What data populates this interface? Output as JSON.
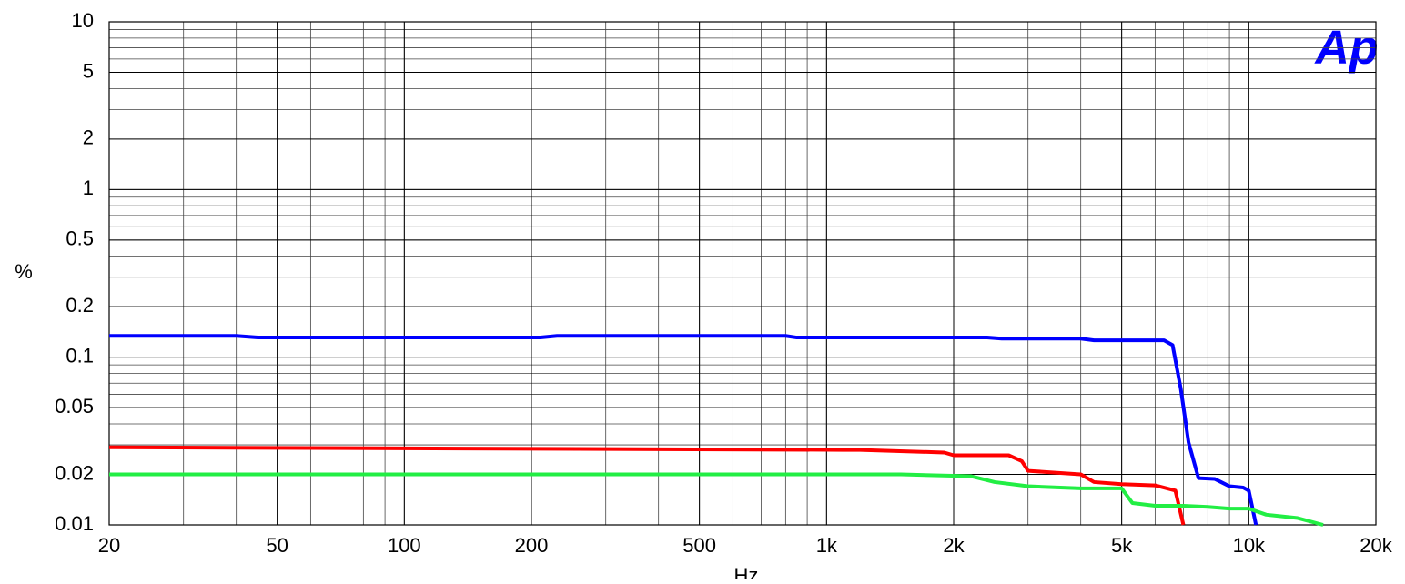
{
  "chart_data": {
    "type": "line",
    "logo": "Ap",
    "ylabel": "%",
    "xlabel": "Hz",
    "xscale": "log",
    "yscale": "log",
    "grid": true,
    "minor_grid": true,
    "xlim": [
      20,
      20000
    ],
    "ylim": [
      0.01,
      10
    ],
    "xticks": [
      20,
      50,
      100,
      200,
      500,
      {
        "value": 1000,
        "label": "1k"
      },
      {
        "value": 2000,
        "label": "2k"
      },
      {
        "value": 5000,
        "label": "5k"
      },
      {
        "value": 10000,
        "label": "10k"
      },
      {
        "value": 20000,
        "label": "20k"
      }
    ],
    "yticks": [
      0.01,
      0.02,
      0.05,
      0.1,
      0.2,
      0.5,
      1,
      2,
      5,
      10
    ],
    "series": [
      {
        "color": "#0000ff",
        "x": [
          20,
          40,
          45,
          210,
          230,
          800,
          850,
          2400,
          2600,
          4000,
          4300,
          6300,
          6600,
          6900,
          7200,
          7600,
          8300,
          9000,
          9700,
          10000,
          10400
        ],
        "values": [
          0.134,
          0.134,
          0.131,
          0.131,
          0.134,
          0.134,
          0.131,
          0.131,
          0.129,
          0.129,
          0.126,
          0.126,
          0.118,
          0.065,
          0.031,
          0.019,
          0.0188,
          0.017,
          0.0167,
          0.016,
          0.01
        ]
      },
      {
        "color": "#ff0000",
        "x": [
          20,
          1100,
          1200,
          1900,
          2000,
          2700,
          2900,
          3000,
          4000,
          4300,
          5000,
          6000,
          6700,
          7000
        ],
        "values": [
          0.029,
          0.028,
          0.028,
          0.027,
          0.026,
          0.026,
          0.024,
          0.021,
          0.02,
          0.018,
          0.0175,
          0.0172,
          0.016,
          0.01
        ]
      },
      {
        "color": "#22ee44",
        "x": [
          20,
          1500,
          2200,
          2500,
          3000,
          4000,
          5000,
          5300,
          6000,
          7000,
          8000,
          9000,
          10000,
          11000,
          13000,
          15000
        ],
        "values": [
          0.02,
          0.02,
          0.0195,
          0.018,
          0.017,
          0.0165,
          0.0165,
          0.0135,
          0.013,
          0.013,
          0.0128,
          0.0125,
          0.0125,
          0.0115,
          0.011,
          0.01
        ]
      }
    ]
  }
}
